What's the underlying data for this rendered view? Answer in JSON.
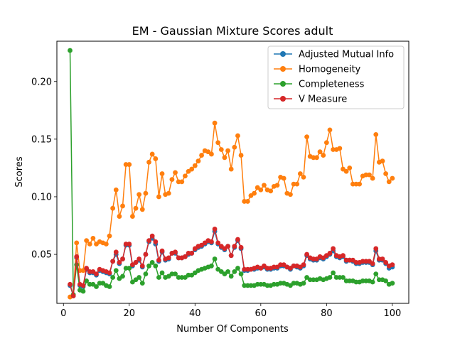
{
  "chart_data": {
    "type": "line",
    "title": "EM - Gaussian Mixture Scores adult",
    "xlabel": "Number Of Components",
    "ylabel": "Scores",
    "xlim": [
      -2,
      105
    ],
    "ylim": [
      0.0075,
      0.235
    ],
    "xticks": [
      0,
      20,
      40,
      60,
      80,
      100
    ],
    "yticks": [
      0.05,
      0.1,
      0.15,
      0.2
    ],
    "xtick_labels": [
      "0",
      "20",
      "40",
      "60",
      "80",
      "100"
    ],
    "ytick_labels": [
      "0.05",
      "0.10",
      "0.15",
      "0.20"
    ],
    "grid": false,
    "legend_position": "top-right",
    "x": [
      2,
      3,
      4,
      5,
      6,
      7,
      8,
      9,
      10,
      11,
      12,
      13,
      14,
      15,
      16,
      17,
      18,
      19,
      20,
      21,
      22,
      23,
      24,
      25,
      26,
      27,
      28,
      29,
      30,
      31,
      32,
      33,
      34,
      35,
      36,
      37,
      38,
      39,
      40,
      41,
      42,
      43,
      44,
      45,
      46,
      47,
      48,
      49,
      50,
      51,
      52,
      53,
      54,
      55,
      56,
      57,
      58,
      59,
      60,
      61,
      62,
      63,
      64,
      65,
      66,
      67,
      68,
      69,
      70,
      71,
      72,
      73,
      74,
      75,
      76,
      77,
      78,
      79,
      80,
      81,
      82,
      83,
      84,
      85,
      86,
      87,
      88,
      89,
      90,
      91,
      92,
      93,
      94,
      95,
      96,
      97,
      98,
      99,
      100
    ],
    "series": [
      {
        "name": "Adjusted Mutual Info",
        "color": "#1f77b4",
        "values": [
          0.023,
          0.014,
          0.047,
          0.023,
          0.022,
          0.037,
          0.034,
          0.034,
          0.032,
          0.036,
          0.035,
          0.034,
          0.033,
          0.044,
          0.05,
          0.042,
          0.046,
          0.058,
          0.058,
          0.04,
          0.043,
          0.045,
          0.039,
          0.05,
          0.061,
          0.064,
          0.059,
          0.044,
          0.052,
          0.045,
          0.046,
          0.051,
          0.051,
          0.047,
          0.047,
          0.048,
          0.05,
          0.051,
          0.054,
          0.056,
          0.057,
          0.059,
          0.061,
          0.06,
          0.07,
          0.059,
          0.056,
          0.054,
          0.057,
          0.049,
          0.056,
          0.062,
          0.055,
          0.036,
          0.036,
          0.037,
          0.037,
          0.038,
          0.038,
          0.039,
          0.037,
          0.037,
          0.038,
          0.038,
          0.04,
          0.04,
          0.039,
          0.037,
          0.04,
          0.039,
          0.038,
          0.04,
          0.049,
          0.046,
          0.045,
          0.045,
          0.047,
          0.046,
          0.048,
          0.05,
          0.053,
          0.048,
          0.047,
          0.048,
          0.044,
          0.045,
          0.044,
          0.042,
          0.042,
          0.043,
          0.043,
          0.043,
          0.041,
          0.053,
          0.045,
          0.045,
          0.042,
          0.038,
          0.039
        ]
      },
      {
        "name": "Homogeneity",
        "color": "#ff7f0e",
        "values": [
          0.013,
          0.015,
          0.06,
          0.036,
          0.036,
          0.062,
          0.059,
          0.064,
          0.059,
          0.061,
          0.06,
          0.059,
          0.066,
          0.09,
          0.106,
          0.083,
          0.092,
          0.128,
          0.128,
          0.083,
          0.09,
          0.102,
          0.089,
          0.103,
          0.13,
          0.137,
          0.133,
          0.1,
          0.12,
          0.102,
          0.103,
          0.115,
          0.121,
          0.113,
          0.113,
          0.118,
          0.122,
          0.124,
          0.127,
          0.131,
          0.136,
          0.14,
          0.139,
          0.137,
          0.164,
          0.147,
          0.141,
          0.134,
          0.14,
          0.124,
          0.143,
          0.153,
          0.136,
          0.096,
          0.096,
          0.101,
          0.103,
          0.108,
          0.106,
          0.11,
          0.106,
          0.105,
          0.109,
          0.11,
          0.117,
          0.116,
          0.103,
          0.102,
          0.111,
          0.111,
          0.12,
          0.117,
          0.152,
          0.135,
          0.134,
          0.134,
          0.139,
          0.136,
          0.147,
          0.158,
          0.141,
          0.141,
          0.142,
          0.124,
          0.122,
          0.125,
          0.111,
          0.111,
          0.111,
          0.118,
          0.119,
          0.119,
          0.116,
          0.154,
          0.13,
          0.131,
          0.12,
          0.113,
          0.116
        ]
      },
      {
        "name": "Completeness",
        "color": "#2ca02c",
        "values": [
          0.227,
          0.015,
          0.041,
          0.019,
          0.018,
          0.027,
          0.024,
          0.024,
          0.022,
          0.025,
          0.025,
          0.023,
          0.022,
          0.03,
          0.036,
          0.029,
          0.031,
          0.038,
          0.038,
          0.026,
          0.028,
          0.03,
          0.025,
          0.033,
          0.04,
          0.043,
          0.04,
          0.03,
          0.034,
          0.03,
          0.031,
          0.033,
          0.033,
          0.03,
          0.03,
          0.03,
          0.032,
          0.032,
          0.034,
          0.036,
          0.037,
          0.038,
          0.039,
          0.04,
          0.046,
          0.037,
          0.035,
          0.033,
          0.035,
          0.031,
          0.035,
          0.038,
          0.033,
          0.023,
          0.023,
          0.023,
          0.023,
          0.024,
          0.024,
          0.024,
          0.023,
          0.023,
          0.024,
          0.024,
          0.025,
          0.025,
          0.024,
          0.023,
          0.025,
          0.025,
          0.024,
          0.025,
          0.03,
          0.028,
          0.028,
          0.028,
          0.029,
          0.028,
          0.029,
          0.03,
          0.034,
          0.03,
          0.03,
          0.03,
          0.027,
          0.027,
          0.027,
          0.026,
          0.026,
          0.027,
          0.027,
          0.027,
          0.026,
          0.033,
          0.028,
          0.028,
          0.027,
          0.024,
          0.025
        ]
      },
      {
        "name": "V Measure",
        "color": "#d62728",
        "values": [
          0.024,
          0.014,
          0.048,
          0.024,
          0.023,
          0.038,
          0.035,
          0.035,
          0.033,
          0.037,
          0.036,
          0.035,
          0.034,
          0.044,
          0.052,
          0.043,
          0.046,
          0.059,
          0.059,
          0.041,
          0.043,
          0.046,
          0.04,
          0.05,
          0.062,
          0.066,
          0.061,
          0.045,
          0.053,
          0.046,
          0.047,
          0.051,
          0.052,
          0.047,
          0.047,
          0.048,
          0.051,
          0.051,
          0.055,
          0.057,
          0.058,
          0.06,
          0.062,
          0.061,
          0.072,
          0.06,
          0.057,
          0.055,
          0.057,
          0.049,
          0.057,
          0.063,
          0.056,
          0.037,
          0.037,
          0.037,
          0.038,
          0.039,
          0.038,
          0.04,
          0.038,
          0.038,
          0.039,
          0.039,
          0.041,
          0.041,
          0.039,
          0.038,
          0.04,
          0.04,
          0.039,
          0.041,
          0.05,
          0.047,
          0.046,
          0.046,
          0.048,
          0.047,
          0.049,
          0.051,
          0.055,
          0.049,
          0.048,
          0.049,
          0.045,
          0.045,
          0.045,
          0.043,
          0.043,
          0.044,
          0.044,
          0.044,
          0.042,
          0.055,
          0.046,
          0.046,
          0.043,
          0.04,
          0.041
        ]
      }
    ]
  }
}
